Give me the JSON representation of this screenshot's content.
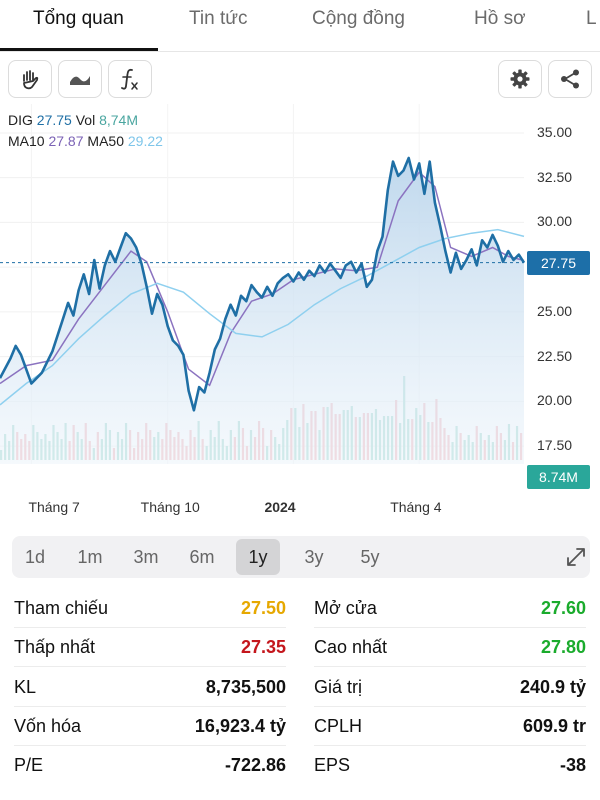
{
  "tabs": [
    {
      "label": "Tổng quan",
      "active": true
    },
    {
      "label": "Tin tức",
      "active": false
    },
    {
      "label": "Cộng đồng",
      "active": false
    },
    {
      "label": "Hồ sơ",
      "active": false
    },
    {
      "label": "L",
      "active": false
    }
  ],
  "toolbar": {
    "left_icons": [
      "hand-icon",
      "wave-icon",
      "function-icon"
    ],
    "right_icons": [
      "gear-icon",
      "share-icon"
    ]
  },
  "legend": {
    "symbol": "DIG",
    "price": "27.75",
    "vol_label": "Vol",
    "vol_value": "8,74M",
    "ma10_label": "MA10",
    "ma10_value": "27.87",
    "ma50_label": "MA50",
    "ma50_value": "29.22"
  },
  "colors": {
    "price_line": "#1f6fa5",
    "price_fill_top": "#bcd6ec",
    "ma10": "#8b73c0",
    "ma50": "#8fd0ef",
    "legend_price": "#1f6fa5",
    "legend_vol": "#4aa6a0",
    "legend_ma10": "#7b62b5",
    "legend_ma50": "#7fc6ea",
    "price_tag_bg": "#1d6fa8",
    "vol_tag_bg": "#2aa79a",
    "vol_up": "#a3d9cf",
    "vol_down": "#f2b7bc",
    "ref_yellow": "#e6a800",
    "down_red": "#c4161c",
    "up_green": "#1aab2c"
  },
  "chart_data": {
    "type": "line",
    "title": "",
    "xlabel": "",
    "ylabel": "",
    "ylim": [
      16.5,
      35.5
    ],
    "y_ticks": [
      "35.00",
      "32.50",
      "30.00",
      "27.50",
      "25.00",
      "22.50",
      "20.00",
      "17.50"
    ],
    "x_ticks": [
      {
        "label": "Tháng 7",
        "bold": false
      },
      {
        "label": "Tháng 10",
        "bold": false
      },
      {
        "label": "2024",
        "bold": true
      },
      {
        "label": "Tháng 4",
        "bold": false
      }
    ],
    "last_price_label": "27.75",
    "last_volume_label": "8.74M",
    "x_range": [
      0,
      100
    ],
    "x_tick_positions": [
      6,
      32,
      56,
      80
    ],
    "price": [
      [
        0,
        21.3
      ],
      [
        2,
        22.4
      ],
      [
        3,
        23.1
      ],
      [
        4,
        22.6
      ],
      [
        6,
        21.0
      ],
      [
        8,
        21.6
      ],
      [
        10,
        22.8
      ],
      [
        12,
        24.6
      ],
      [
        13,
        25.5
      ],
      [
        14,
        24.8
      ],
      [
        15,
        26.2
      ],
      [
        16,
        27.1
      ],
      [
        17,
        26.0
      ],
      [
        18,
        27.9
      ],
      [
        19,
        26.3
      ],
      [
        20,
        27.6
      ],
      [
        21,
        28.4
      ],
      [
        22,
        27.8
      ],
      [
        23,
        28.6
      ],
      [
        24,
        29.4
      ],
      [
        25,
        29.1
      ],
      [
        26,
        28.6
      ],
      [
        27,
        27.7
      ],
      [
        28,
        26.4
      ],
      [
        29,
        24.9
      ],
      [
        30,
        26.0
      ],
      [
        31,
        25.4
      ],
      [
        32,
        24.2
      ],
      [
        33,
        23.4
      ],
      [
        34,
        23.1
      ],
      [
        35,
        22.6
      ],
      [
        36,
        20.6
      ],
      [
        37,
        19.5
      ],
      [
        38,
        20.8
      ],
      [
        39,
        20.5
      ],
      [
        40,
        21.6
      ],
      [
        41,
        22.9
      ],
      [
        42,
        23.5
      ],
      [
        43,
        24.6
      ],
      [
        44,
        25.4
      ],
      [
        45,
        24.8
      ],
      [
        46,
        25.9
      ],
      [
        47,
        25.6
      ],
      [
        48,
        26.5
      ],
      [
        49,
        26.1
      ],
      [
        50,
        25.8
      ],
      [
        51,
        26.4
      ],
      [
        52,
        25.9
      ],
      [
        53,
        26.6
      ],
      [
        54,
        26.9
      ],
      [
        55,
        27.1
      ],
      [
        56,
        26.7
      ],
      [
        57,
        27.2
      ],
      [
        58,
        26.8
      ],
      [
        59,
        27.3
      ],
      [
        60,
        27.0
      ],
      [
        61,
        27.6
      ],
      [
        62,
        27.2
      ],
      [
        63,
        27.7
      ],
      [
        64,
        27.3
      ],
      [
        65,
        26.9
      ],
      [
        66,
        27.6
      ],
      [
        67,
        27.8
      ],
      [
        68,
        27.2
      ],
      [
        69,
        27.7
      ],
      [
        70,
        26.4
      ],
      [
        71,
        26.8
      ],
      [
        72,
        28.4
      ],
      [
        73,
        29.2
      ],
      [
        74,
        31.8
      ],
      [
        75,
        33.4
      ],
      [
        76,
        32.6
      ],
      [
        77,
        32.9
      ],
      [
        78,
        33.6
      ],
      [
        79,
        32.4
      ],
      [
        80,
        33.3
      ],
      [
        81,
        31.6
      ],
      [
        82,
        33.4
      ],
      [
        83,
        31.1
      ],
      [
        84,
        29.8
      ],
      [
        85,
        28.4
      ],
      [
        86,
        27.2
      ],
      [
        87,
        28.3
      ],
      [
        88,
        27.4
      ],
      [
        89,
        27.9
      ],
      [
        90,
        28.5
      ],
      [
        91,
        27.6
      ],
      [
        92,
        29.0
      ],
      [
        93,
        28.6
      ],
      [
        94,
        29.3
      ],
      [
        95,
        28.7
      ],
      [
        96,
        27.8
      ],
      [
        97,
        28.4
      ],
      [
        98,
        27.9
      ],
      [
        99,
        28.2
      ],
      [
        100,
        27.75
      ]
    ],
    "series": [
      {
        "name": "MA10",
        "values": [
          [
            0,
            21.0
          ],
          [
            5,
            22.0
          ],
          [
            10,
            22.3
          ],
          [
            15,
            24.6
          ],
          [
            20,
            26.5
          ],
          [
            25,
            28.4
          ],
          [
            28,
            27.8
          ],
          [
            32,
            25.0
          ],
          [
            36,
            21.8
          ],
          [
            40,
            20.9
          ],
          [
            44,
            23.8
          ],
          [
            48,
            25.6
          ],
          [
            52,
            26.0
          ],
          [
            56,
            26.8
          ],
          [
            60,
            27.1
          ],
          [
            64,
            27.4
          ],
          [
            68,
            27.3
          ],
          [
            72,
            27.5
          ],
          [
            76,
            31.2
          ],
          [
            80,
            32.8
          ],
          [
            83,
            32.0
          ],
          [
            86,
            28.6
          ],
          [
            90,
            28.1
          ],
          [
            94,
            28.6
          ],
          [
            97,
            28.1
          ],
          [
            100,
            27.87
          ]
        ]
      },
      {
        "name": "MA50",
        "values": [
          [
            0,
            19.8
          ],
          [
            5,
            21.0
          ],
          [
            10,
            22.0
          ],
          [
            15,
            23.5
          ],
          [
            20,
            24.8
          ],
          [
            25,
            26.0
          ],
          [
            30,
            26.6
          ],
          [
            35,
            26.1
          ],
          [
            40,
            24.9
          ],
          [
            45,
            23.8
          ],
          [
            50,
            23.6
          ],
          [
            55,
            24.3
          ],
          [
            60,
            25.4
          ],
          [
            65,
            26.3
          ],
          [
            70,
            27.0
          ],
          [
            75,
            27.8
          ],
          [
            80,
            28.6
          ],
          [
            85,
            29.1
          ],
          [
            90,
            29.4
          ],
          [
            95,
            29.6
          ],
          [
            100,
            29.22
          ]
        ]
      }
    ],
    "grid": true,
    "legend_position": "top-left"
  },
  "range_selector": {
    "options": [
      "1d",
      "1m",
      "3m",
      "6m",
      "1y",
      "3y",
      "5y"
    ],
    "active": "1y"
  },
  "stats": [
    {
      "left_label": "Tham chiếu",
      "left_value": "27.50",
      "left_color": "yellow",
      "right_label": "Mở cửa",
      "right_value": "27.60",
      "right_color": "green"
    },
    {
      "left_label": "Thấp nhất",
      "left_value": "27.35",
      "left_color": "red",
      "right_label": "Cao nhất",
      "right_value": "27.80",
      "right_color": "green"
    },
    {
      "left_label": "KL",
      "left_value": "8,735,500",
      "left_color": "black",
      "right_label": "Giá trị",
      "right_value": "240.9 tỷ",
      "right_color": "black"
    },
    {
      "left_label": "Vốn hóa",
      "left_value": "16,923.4 tỷ",
      "left_color": "black",
      "right_label": "CPLH",
      "right_value": "609.9 tr",
      "right_color": "black"
    },
    {
      "left_label": "P/E",
      "left_value": "-722.86",
      "left_color": "black",
      "right_label": "EPS",
      "right_value": "-38",
      "right_color": "black"
    }
  ]
}
